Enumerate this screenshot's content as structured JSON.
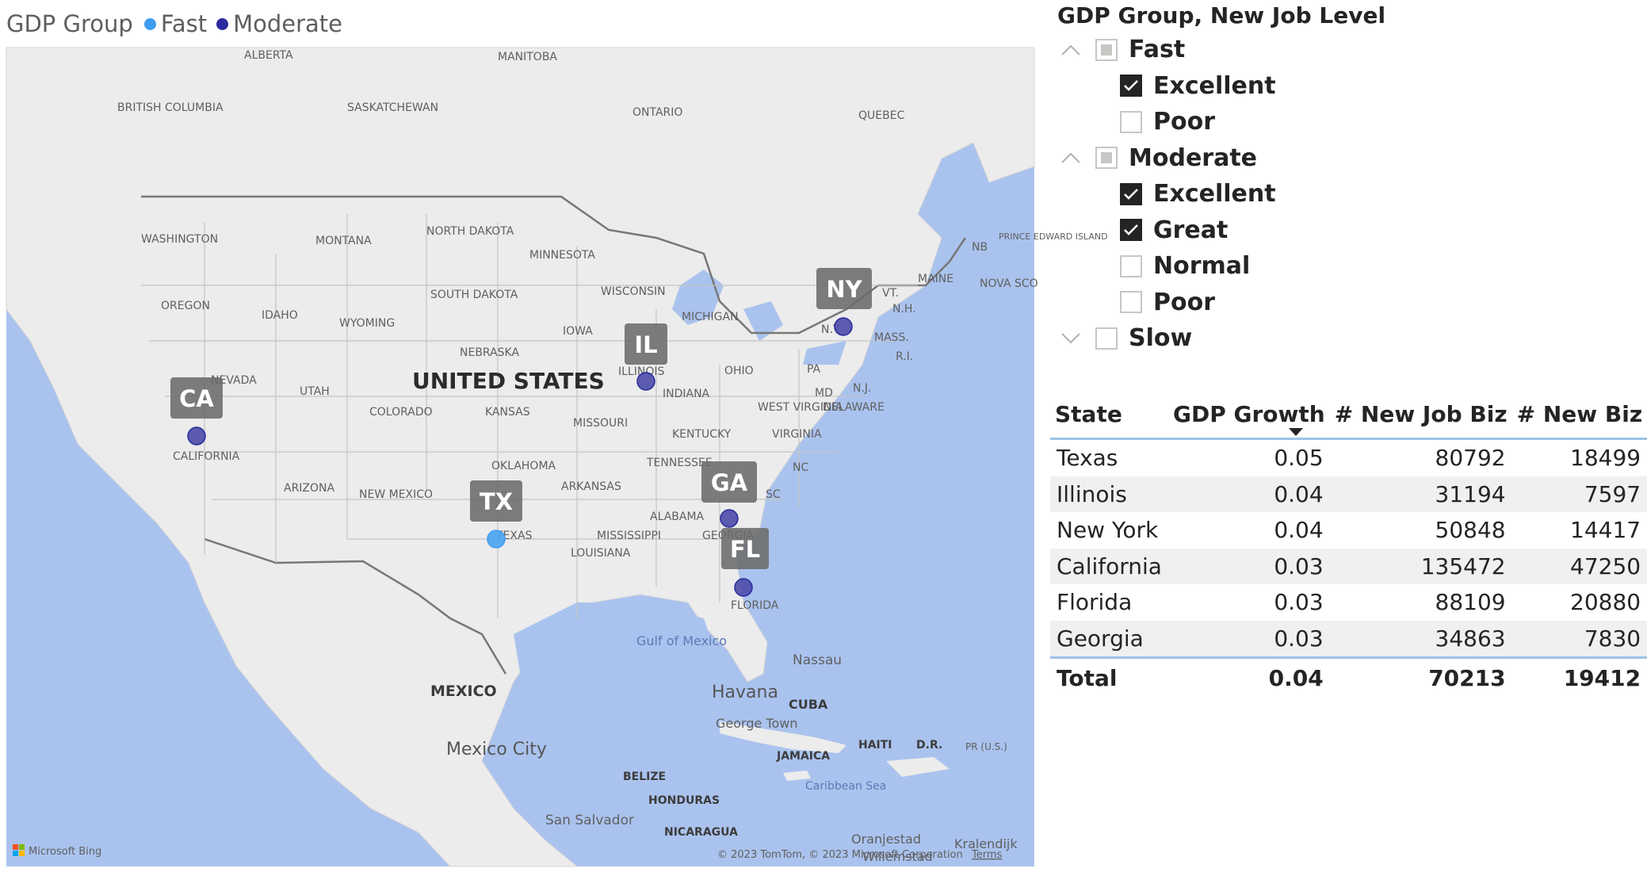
{
  "legend": {
    "title": "GDP Group",
    "items": [
      {
        "label": "Fast",
        "color": "#3f9cf0"
      },
      {
        "label": "Moderate",
        "color": "#2a2a9e"
      }
    ]
  },
  "map": {
    "state_labels": [
      "CA",
      "TX",
      "IL",
      "GA",
      "FL",
      "NY"
    ],
    "country_label": "UNITED STATES",
    "place_labels": [
      "ALBERTA",
      "MANITOBA",
      "BRITISH COLUMBIA",
      "SASKATCHEWAN",
      "ONTARIO",
      "QUEBEC",
      "WASHINGTON",
      "MONTANA",
      "NORTH DAKOTA",
      "MINNESOTA",
      "OREGON",
      "IDAHO",
      "WYOMING",
      "SOUTH DAKOTA",
      "WISCONSIN",
      "MICHIGAN",
      "IOWA",
      "NEBRASKA",
      "NEVADA",
      "UTAH",
      "COLORADO",
      "KANSAS",
      "MISSOURI",
      "ILLINOIS",
      "INDIANA",
      "OHIO",
      "PA",
      "CALIFORNIA",
      "ARIZONA",
      "NEW MEXICO",
      "OKLAHOMA",
      "ARKANSAS",
      "TENNESSEE",
      "KENTUCKY",
      "WEST VIRGINIA",
      "VIRGINIA",
      "NC",
      "SC",
      "ALABAMA",
      "MISSISSIPPI",
      "GEORGIA",
      "LOUISIANA",
      "TEXAS",
      "FLORIDA",
      "MAINE",
      "VT.",
      "N.H.",
      "MASS.",
      "R.I.",
      "N.J.",
      "MD",
      "DELAWARE",
      "NB",
      "NOVA SCO",
      "PRINCE EDWARD ISLAND",
      "N.Y.",
      "MEXICO",
      "CUBA",
      "HAITI",
      "D.R.",
      "PR (U.S.)",
      "JAMAICA",
      "BELIZE",
      "HONDURAS",
      "NICARAGUA"
    ],
    "city_labels": [
      "Havana",
      "Mexico City",
      "Nassau",
      "George Town",
      "San Salvador",
      "Oranjestad",
      "Kralendijk",
      "Willemstad"
    ],
    "water_labels": [
      "Gulf of Mexico",
      "Caribbean Sea"
    ],
    "bing_logo": "Microsoft Bing",
    "copyright": "© 2023 TomTom, © 2023 Microsoft Corporation",
    "terms": "Terms",
    "land_color": "#ececec",
    "water_color": "#aac3ee"
  },
  "slicer": {
    "title": "GDP Group, New Job Level",
    "groups": [
      {
        "label": "Fast",
        "expanded": true,
        "state": "partial",
        "children": [
          {
            "label": "Excellent",
            "checked": true
          },
          {
            "label": "Poor",
            "checked": false
          }
        ]
      },
      {
        "label": "Moderate",
        "expanded": true,
        "state": "partial",
        "children": [
          {
            "label": "Excellent",
            "checked": true
          },
          {
            "label": "Great",
            "checked": true
          },
          {
            "label": "Normal",
            "checked": false
          },
          {
            "label": "Poor",
            "checked": false
          }
        ]
      },
      {
        "label": "Slow",
        "expanded": false,
        "state": "unchecked",
        "children": []
      }
    ]
  },
  "table": {
    "columns": [
      "State",
      "GDP Growth",
      "# New Job Biz",
      "# New Biz"
    ],
    "rows": [
      [
        "Texas",
        "0.05",
        "80792",
        "18499"
      ],
      [
        "Illinois",
        "0.04",
        "31194",
        "7597"
      ],
      [
        "New York",
        "0.04",
        "50848",
        "14417"
      ],
      [
        "California",
        "0.03",
        "135472",
        "47250"
      ],
      [
        "Florida",
        "0.03",
        "88109",
        "20880"
      ],
      [
        "Georgia",
        "0.03",
        "34863",
        "7830"
      ]
    ],
    "total": [
      "Total",
      "0.04",
      "70213",
      "19412"
    ]
  }
}
